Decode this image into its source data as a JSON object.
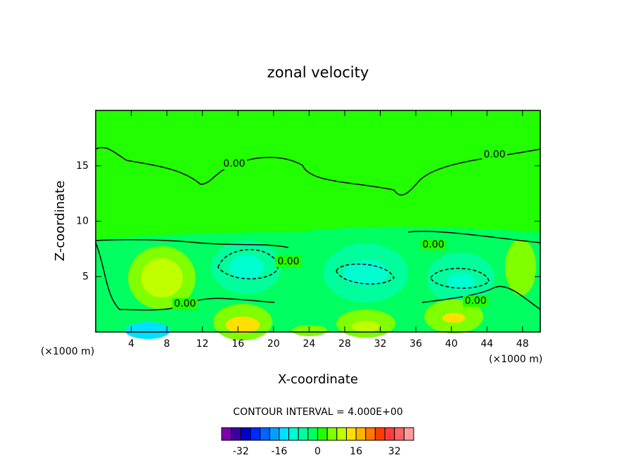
{
  "chart_data": {
    "type": "contour",
    "title": "zonal velocity",
    "x_label": "X-coordinate",
    "y_label": "Z-coordinate",
    "x_unit_labels": [
      "(×1000 m)",
      "(×1000 m)"
    ],
    "xlim": [
      0,
      50
    ],
    "xticks": [
      4,
      8,
      12,
      16,
      20,
      24,
      28,
      32,
      36,
      40,
      44,
      48
    ],
    "ylim": [
      0,
      20
    ],
    "yticks": [
      5,
      10,
      15
    ],
    "contour_interval": "CONTOUR INTERVAL = 4.000E+00",
    "contour_labels": [
      "0.00",
      "0.00",
      "0.00",
      "0.00",
      "0.00",
      "0.00"
    ],
    "colorbar_lim": [
      -40,
      40
    ],
    "colorbar_ticks": [
      -32,
      -16,
      0,
      16,
      32
    ],
    "colors": [
      "#8000b0",
      "#3c00a0",
      "#0000c8",
      "#0028ff",
      "#0064ff",
      "#00a0ff",
      "#00e0ff",
      "#00ffd0",
      "#00ff9c",
      "#00ff60",
      "#22ff00",
      "#80ff00",
      "#c0ff00",
      "#ffe000",
      "#ffb400",
      "#ff7800",
      "#ff3c00",
      "#ff3c3c",
      "#ff6464",
      "#ff9c9c"
    ]
  }
}
